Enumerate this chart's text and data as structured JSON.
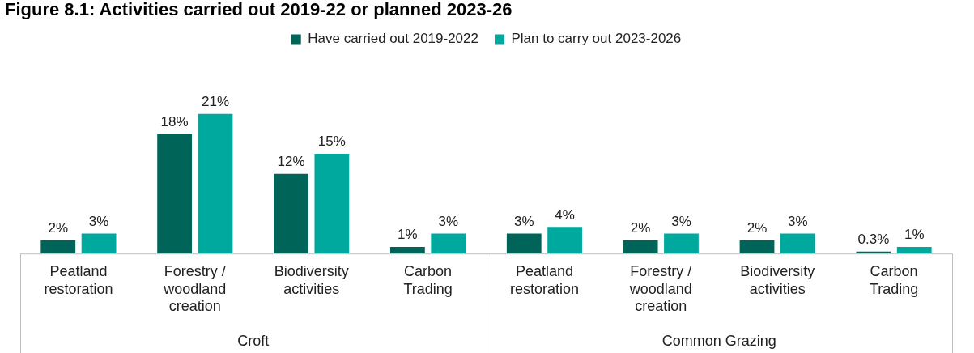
{
  "chart_data": {
    "type": "bar",
    "title": "Figure 8.1: Activities carried out 2019-22 or planned 2023-26",
    "categories": [
      "Peatland restoration",
      "Forestry / woodland creation",
      "Biodiversity activities",
      "Carbon Trading",
      "Peatland restoration",
      "Forestry / woodland creation",
      "Biodiversity activities",
      "Carbon Trading"
    ],
    "series": [
      {
        "name": "Have carried out 2019-2022",
        "color": "#006459",
        "values": [
          2,
          18,
          12,
          1,
          3,
          2,
          2,
          0.3
        ],
        "value_labels": [
          "2%",
          "18%",
          "12%",
          "1%",
          "3%",
          "2%",
          "2%",
          "0.3%"
        ]
      },
      {
        "name": "Plan to carry out 2023-2026",
        "color": "#00a99d",
        "values": [
          3,
          21,
          15,
          3,
          4,
          3,
          3,
          1
        ],
        "value_labels": [
          "3%",
          "21%",
          "15%",
          "3%",
          "4%",
          "3%",
          "3%",
          "1%"
        ]
      }
    ],
    "annotations": [
      "Croft",
      "Common Grazing"
    ],
    "legend": "top",
    "grid": false
  }
}
